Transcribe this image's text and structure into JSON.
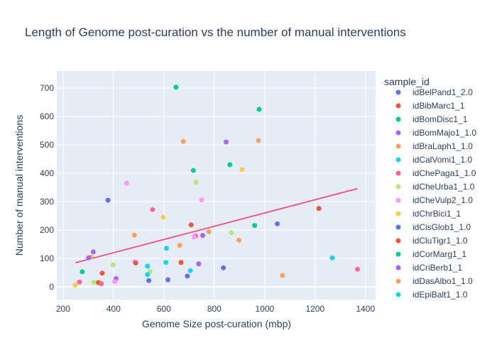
{
  "chart_data": {
    "type": "scatter",
    "title": "Length of Genome post-curation vs the number of manual interventions",
    "xlabel": "Genome Size post-curation (mbp)",
    "ylabel": "Number of manual interventions",
    "xlim": [
      175,
      1440
    ],
    "ylim": [
      -45,
      760
    ],
    "xticks": [
      200,
      400,
      600,
      800,
      1000,
      1200,
      1400
    ],
    "yticks": [
      0,
      100,
      200,
      300,
      400,
      500,
      600,
      700
    ],
    "grid": true,
    "legend_title": "sample_id",
    "legend_position": "right",
    "colors": {
      "plot_bg": "#e5ecf6",
      "grid": "#ffffff",
      "text": "#2a3f5f",
      "trendline": "#ef5d88"
    },
    "series": [
      {
        "name": "idBelPand1_2.0",
        "color": "#636efa",
        "points": []
      },
      {
        "name": "idBibMarc1_1",
        "color": "#ef553b",
        "points": []
      },
      {
        "name": "idBomDisc1_1",
        "color": "#00cc96",
        "points": []
      },
      {
        "name": "idBomMajo1_1.0",
        "color": "#ab63fa",
        "points": []
      },
      {
        "name": "idBraLaph1_1.0",
        "color": "#ffa15a",
        "points": []
      },
      {
        "name": "idCalVomi1_1.0",
        "color": "#19d3f3",
        "points": []
      },
      {
        "name": "idChePaga1_1.0",
        "color": "#ff6692",
        "points": []
      },
      {
        "name": "idCheUrba1_1.0",
        "color": "#b6e880",
        "points": []
      },
      {
        "name": "idCheVulp2_1.0",
        "color": "#ff97ff",
        "points": []
      },
      {
        "name": "idChrBici1_1",
        "color": "#fecb52",
        "points": []
      },
      {
        "name": "idCisGlob1_1.0",
        "color": "#636efa",
        "points": []
      },
      {
        "name": "idCluTigr1_1.0",
        "color": "#ef553b",
        "points": []
      },
      {
        "name": "idCorMarg1_1",
        "color": "#00cc96",
        "points": []
      },
      {
        "name": "idCriBerb1_1",
        "color": "#ab63fa",
        "points": []
      },
      {
        "name": "idDasAlbo1_1.0",
        "color": "#ffa15a",
        "points": []
      },
      {
        "name": "idEpiBalt1_1.0",
        "color": "#19d3f3",
        "points": []
      }
    ],
    "other_points": [
      {
        "x": 648,
        "y": 703,
        "color": "#00cc96"
      },
      {
        "x": 978,
        "y": 625,
        "color": "#00cc96"
      },
      {
        "x": 975,
        "y": 515,
        "color": "#ffa15a"
      },
      {
        "x": 677,
        "y": 512,
        "color": "#ffa15a"
      },
      {
        "x": 847,
        "y": 510,
        "color": "#ab63fa"
      },
      {
        "x": 862,
        "y": 430,
        "color": "#00cc96"
      },
      {
        "x": 910,
        "y": 413,
        "color": "#fecb52"
      },
      {
        "x": 717,
        "y": 410,
        "color": "#00cc96"
      },
      {
        "x": 727,
        "y": 368,
        "color": "#b6e880"
      },
      {
        "x": 452,
        "y": 365,
        "color": "#ff97ff"
      },
      {
        "x": 378,
        "y": 305,
        "color": "#636efa"
      },
      {
        "x": 749,
        "y": 306,
        "color": "#ff97ff"
      },
      {
        "x": 1215,
        "y": 276,
        "color": "#ef553b"
      },
      {
        "x": 555,
        "y": 272,
        "color": "#ff6692"
      },
      {
        "x": 597,
        "y": 245,
        "color": "#fecb52"
      },
      {
        "x": 1050,
        "y": 222,
        "color": "#636efa"
      },
      {
        "x": 708,
        "y": 218,
        "color": "#ef553b"
      },
      {
        "x": 960,
        "y": 216,
        "color": "#00cc96"
      },
      {
        "x": 778,
        "y": 194,
        "color": "#ffa15a"
      },
      {
        "x": 868,
        "y": 191,
        "color": "#b6e880"
      },
      {
        "x": 483,
        "y": 182,
        "color": "#ffa15a"
      },
      {
        "x": 754,
        "y": 181,
        "color": "#ab63fa"
      },
      {
        "x": 726,
        "y": 179,
        "color": "#ff6692"
      },
      {
        "x": 720,
        "y": 176,
        "color": "#ff97ff"
      },
      {
        "x": 898,
        "y": 164,
        "color": "#ffa15a"
      },
      {
        "x": 663,
        "y": 146,
        "color": "#ffa15a"
      },
      {
        "x": 610,
        "y": 136,
        "color": "#19d3f3"
      },
      {
        "x": 320,
        "y": 123,
        "color": "#ab63fa"
      },
      {
        "x": 310,
        "y": 105,
        "color": "#ffa15a"
      },
      {
        "x": 301,
        "y": 102,
        "color": "#ab63fa"
      },
      {
        "x": 1268,
        "y": 102,
        "color": "#19d3f3"
      },
      {
        "x": 484,
        "y": 89,
        "color": "#ff97ff"
      },
      {
        "x": 608,
        "y": 86,
        "color": "#19d3f3"
      },
      {
        "x": 668,
        "y": 86,
        "color": "#ef553b"
      },
      {
        "x": 488,
        "y": 84,
        "color": "#ef553b"
      },
      {
        "x": 738,
        "y": 81,
        "color": "#ab63fa"
      },
      {
        "x": 398,
        "y": 77,
        "color": "#b6e880"
      },
      {
        "x": 535,
        "y": 73,
        "color": "#19d3f3"
      },
      {
        "x": 836,
        "y": 67,
        "color": "#636efa"
      },
      {
        "x": 1368,
        "y": 62,
        "color": "#ff6692"
      },
      {
        "x": 705,
        "y": 57,
        "color": "#19d3f3"
      },
      {
        "x": 545,
        "y": 54,
        "color": "#b6e880"
      },
      {
        "x": 276,
        "y": 53,
        "color": "#00cc96"
      },
      {
        "x": 355,
        "y": 48,
        "color": "#ef553b"
      },
      {
        "x": 535,
        "y": 43,
        "color": "#19d3f3"
      },
      {
        "x": 1070,
        "y": 40,
        "color": "#ffa15a"
      },
      {
        "x": 693,
        "y": 38,
        "color": "#636efa"
      },
      {
        "x": 410,
        "y": 29,
        "color": "#ab63fa"
      },
      {
        "x": 616,
        "y": 25,
        "color": "#636efa"
      },
      {
        "x": 540,
        "y": 22,
        "color": "#636efa"
      },
      {
        "x": 405,
        "y": 18,
        "color": "#ff97ff"
      },
      {
        "x": 265,
        "y": 17,
        "color": "#ff6692"
      },
      {
        "x": 322,
        "y": 16,
        "color": "#b6e880"
      },
      {
        "x": 340,
        "y": 15,
        "color": "#ef553b"
      },
      {
        "x": 352,
        "y": 11,
        "color": "#ff6692"
      },
      {
        "x": 248,
        "y": 6,
        "color": "#fecb52"
      }
    ],
    "trendline": {
      "x": [
        250,
        1368
      ],
      "y": [
        85,
        346
      ]
    }
  }
}
